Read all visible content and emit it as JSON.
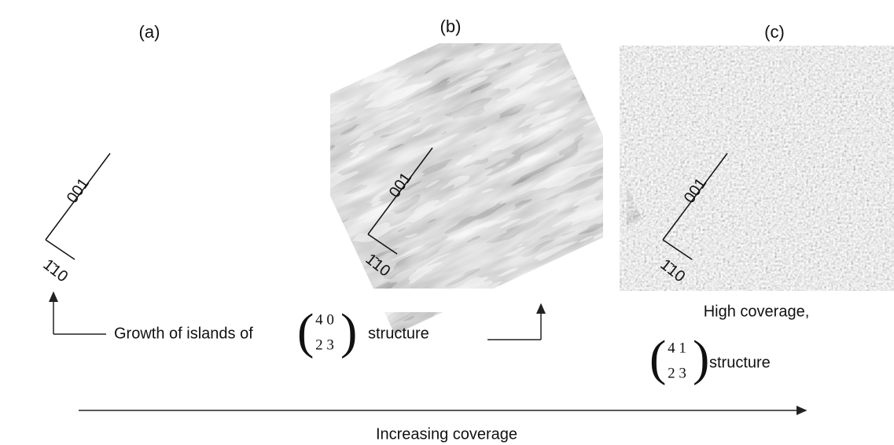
{
  "panels": [
    {
      "label": "(a)",
      "long_axis": "001",
      "short_axis": "1̄10"
    },
    {
      "label": "(b)",
      "long_axis": "001",
      "short_axis": "1̄10"
    },
    {
      "label": "(c)",
      "long_axis": "001",
      "short_axis": "1̄10"
    }
  ],
  "growth_caption": {
    "text": "Growth of islands of",
    "matrix": [
      "4 0",
      "2 3"
    ],
    "suffix": "structure"
  },
  "high_caption": {
    "text": "High coverage,",
    "matrix": [
      "4 1",
      "2 3"
    ],
    "suffix": "structure"
  },
  "arrow_label": "Increasing coverage"
}
